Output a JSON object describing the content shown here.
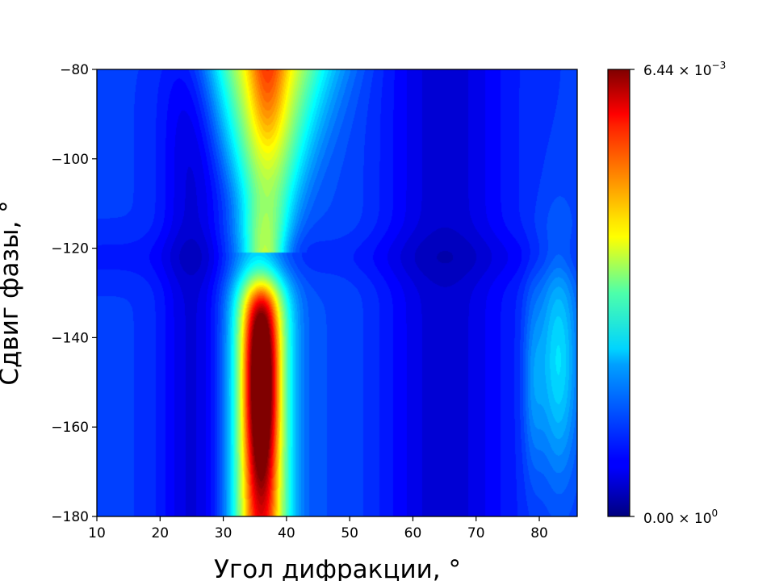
{
  "chart_data": {
    "type": "heatmap",
    "title": "",
    "xlabel": "Угол дифракции, °",
    "ylabel": "Сдвиг фазы, °",
    "xlim": [
      10,
      86
    ],
    "ylim": [
      -180,
      -80
    ],
    "x_ticks": [
      10,
      20,
      30,
      40,
      50,
      60,
      70,
      80
    ],
    "y_ticks": [
      -80,
      -100,
      -120,
      -140,
      -160,
      -180
    ],
    "colormap": "jet",
    "colorbar": {
      "min": 0,
      "max": 0.00644,
      "min_label": "0.00 × 10",
      "min_exp": "0",
      "max_label": "6.44 × 10",
      "max_exp": "−3",
      "placement": "right"
    },
    "features": [
      {
        "x": 36,
        "y": -155,
        "peak": 0.0064,
        "note": "main peak region, y from -180 to -130"
      },
      {
        "x": 37,
        "y": -85,
        "peak": 0.0042,
        "note": "upper lobe at top edge"
      },
      {
        "x": 83,
        "y": -145,
        "peak": 0.0019,
        "note": "weak lobe near right edge"
      }
    ]
  }
}
